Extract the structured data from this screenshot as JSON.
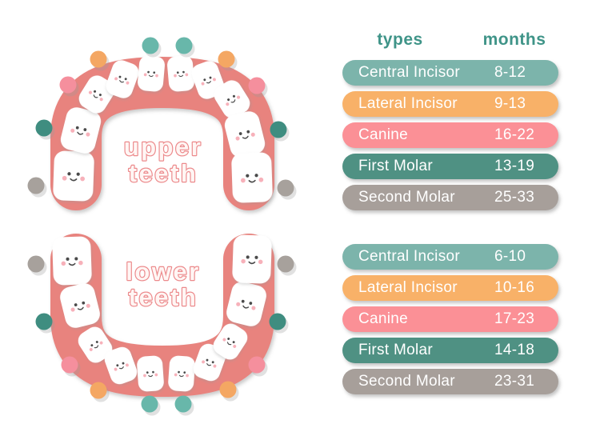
{
  "diagram": {
    "upper_label": [
      "upper",
      "teeth"
    ],
    "lower_label": [
      "lower",
      "teeth"
    ],
    "arch_color": "#e8837e",
    "tooth_color": "#ffffff",
    "label_fill": "#fff6f4",
    "label_outline": "#ec8a8c",
    "face_color": "#4a4a4a",
    "cheek_color": "#f6a9b3",
    "dot_colors": {
      "central_incisor": "#68b7aa",
      "lateral_incisor": "#f4a763",
      "canine": "#f58f9d",
      "first_molar": "#3f8d80",
      "second_molar": "#a7a19c"
    }
  },
  "headers": {
    "types": "types",
    "months": "months",
    "color": "#3f9488"
  },
  "tables": {
    "upper": {
      "rows": [
        {
          "type": "Central Incisor",
          "months": "8-12",
          "color": "#7cb4ab"
        },
        {
          "type": "Lateral Incisor",
          "months": "9-13",
          "color": "#f8b168"
        },
        {
          "type": "Canine",
          "months": "16-22",
          "color": "#fb9096"
        },
        {
          "type": "First Molar",
          "months": "13-19",
          "color": "#4f9183"
        },
        {
          "type": "Second Molar",
          "months": "25-33",
          "color": "#a79f9a"
        }
      ]
    },
    "lower": {
      "rows": [
        {
          "type": "Central Incisor",
          "months": "6-10",
          "color": "#7cb4ab"
        },
        {
          "type": "Lateral Incisor",
          "months": "10-16",
          "color": "#f8b168"
        },
        {
          "type": "Canine",
          "months": "17-23",
          "color": "#fb9096"
        },
        {
          "type": "First Molar",
          "months": "14-18",
          "color": "#4f9183"
        },
        {
          "type": "Second Molar",
          "months": "23-31",
          "color": "#a79f9a"
        }
      ]
    }
  }
}
